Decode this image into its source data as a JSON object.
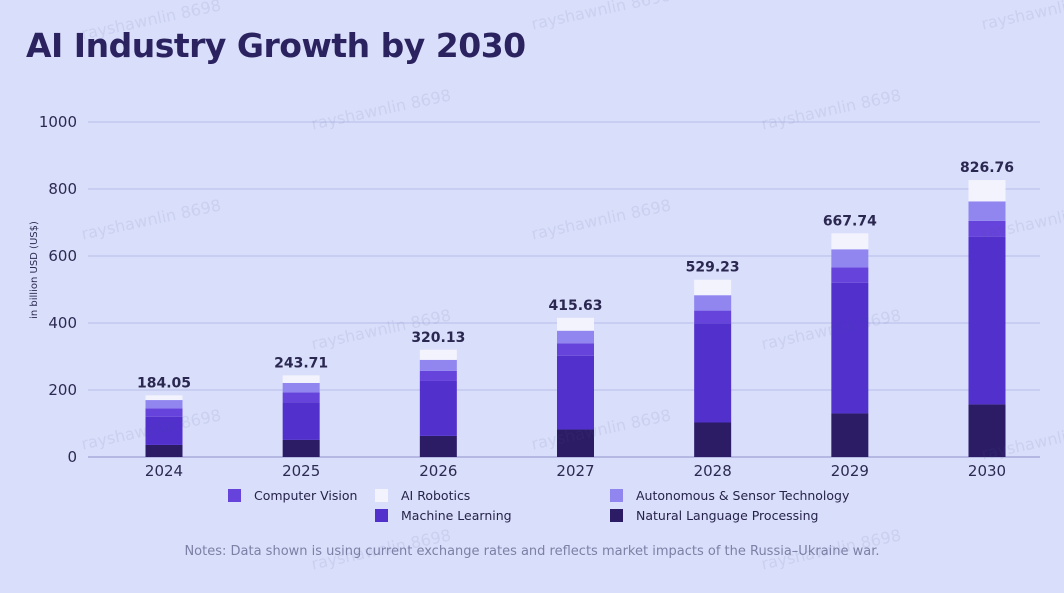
{
  "chart_data": {
    "type": "bar",
    "stacked": true,
    "title": "AI Industry Growth by 2030",
    "ylabel": "in billion USD (US$)",
    "xlabel": "",
    "ylim": [
      0,
      1000
    ],
    "yticks": [
      0,
      200,
      400,
      600,
      800,
      1000
    ],
    "grid": true,
    "categories": [
      "2024",
      "2025",
      "2026",
      "2027",
      "2028",
      "2029",
      "2030"
    ],
    "totals": [
      "184.05",
      "243.71",
      "320.13",
      "415.63",
      "529.23",
      "667.74",
      "826.76"
    ],
    "series": [
      {
        "name": "Natural Language Processing",
        "color": "#2c1c66",
        "values": [
          36,
          51,
          63,
          82,
          103,
          130,
          157
        ]
      },
      {
        "name": "Machine Learning",
        "color": "#5130cc",
        "values": [
          84,
          112,
          164,
          220,
          296,
          390,
          500
        ]
      },
      {
        "name": "Computer Vision",
        "color": "#6643da",
        "values": [
          25,
          30,
          30,
          37,
          38,
          46,
          48
        ]
      },
      {
        "name": "Autonomous & Sensor Technology",
        "color": "#9186f0",
        "values": [
          25,
          28,
          33,
          38,
          46,
          54,
          58
        ]
      },
      {
        "name": "AI Robotics",
        "color": "#f3f3fd",
        "values": [
          14.05,
          22.71,
          30.13,
          38.63,
          46.23,
          47.74,
          63.76
        ]
      }
    ]
  },
  "legend": [
    {
      "label": "Computer Vision",
      "color": "#6643da"
    },
    {
      "label": "AI Robotics",
      "color": "#f3f3fd"
    },
    {
      "label": "Autonomous & Sensor Technology",
      "color": "#9186f0"
    },
    {
      "label": "Machine Learning",
      "color": "#5130cc"
    },
    {
      "label": "Natural Language Processing",
      "color": "#2c1c66"
    }
  ],
  "notes": "Notes: Data shown is using current exchange rates and reflects market impacts of the Russia–Ukraine war.",
  "watermark": "rayshawnlin 8698"
}
